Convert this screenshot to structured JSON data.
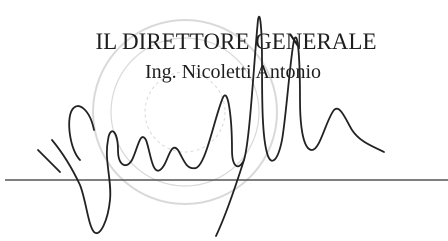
{
  "signature_block": {
    "title": "IL DIRETTORE GENERALE",
    "name": "Ing. Nicoletti Antonio"
  }
}
